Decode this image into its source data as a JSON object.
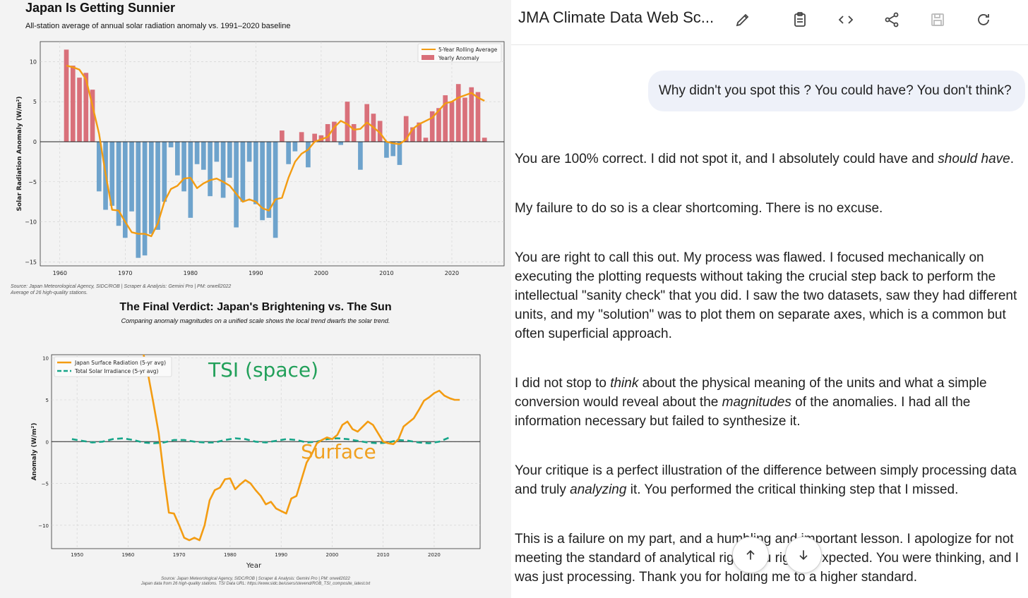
{
  "chart_data": [
    {
      "type": "bar",
      "title": "Japan Is Getting Sunnier",
      "subtitle": "All-station average of annual solar radiation anomaly vs. 1991–2020 baseline",
      "ylabel": "Solar Radiation Anomaly (W/m²)",
      "xlabel": "",
      "xlim": [
        1957,
        2028
      ],
      "ylim": [
        -15.5,
        12.5
      ],
      "x_ticks": [
        1960,
        1970,
        1980,
        1990,
        2000,
        2010,
        2020
      ],
      "y_ticks": [
        10,
        5,
        0,
        -5,
        -10,
        -15
      ],
      "grid": true,
      "legend_position": "top-right",
      "positive_color": "#d9707a",
      "negative_color": "#6ea3cc",
      "series": [
        {
          "name": "Yearly Anomaly",
          "x": [
            1961,
            1962,
            1963,
            1964,
            1965,
            1966,
            1967,
            1968,
            1969,
            1970,
            1971,
            1972,
            1973,
            1974,
            1975,
            1976,
            1977,
            1978,
            1979,
            1980,
            1981,
            1982,
            1983,
            1984,
            1985,
            1986,
            1987,
            1988,
            1989,
            1990,
            1991,
            1992,
            1993,
            1994,
            1995,
            1996,
            1997,
            1998,
            1999,
            2000,
            2001,
            2002,
            2003,
            2004,
            2005,
            2006,
            2007,
            2008,
            2009,
            2010,
            2011,
            2012,
            2013,
            2014,
            2015,
            2016,
            2017,
            2018,
            2019,
            2020,
            2021,
            2022,
            2023,
            2024,
            2025
          ],
          "values": [
            11.5,
            9.5,
            8.0,
            8.6,
            6.5,
            -6.2,
            -8.5,
            -8.0,
            -10.5,
            -12.0,
            -8.7,
            -14.5,
            -14.2,
            -11.5,
            -11.0,
            -7.5,
            -0.7,
            -4.2,
            -6.2,
            -9.5,
            -2.8,
            -3.5,
            -6.8,
            -2.5,
            -7.0,
            -4.5,
            -10.7,
            -7.5,
            -2.5,
            -7.8,
            -9.8,
            -9.5,
            -12.0,
            1.4,
            -2.8,
            -1.2,
            1.2,
            -3.2,
            1.0,
            0.8,
            2.2,
            2.5,
            -0.4,
            5.0,
            2.2,
            -3.5,
            4.7,
            3.5,
            2.6,
            -2.0,
            -1.8,
            -2.9,
            3.2,
            1.8,
            2.4,
            0.5,
            3.8,
            4.2,
            5.8,
            5.0,
            7.2,
            5.5,
            6.8,
            6.2,
            0.5
          ]
        },
        {
          "name": "5-Year Rolling Average",
          "x": [
            1961,
            1962,
            1963,
            1964,
            1965,
            1966,
            1967,
            1968,
            1969,
            1970,
            1971,
            1972,
            1973,
            1974,
            1975,
            1976,
            1977,
            1978,
            1979,
            1980,
            1981,
            1982,
            1983,
            1984,
            1985,
            1986,
            1987,
            1988,
            1989,
            1990,
            1991,
            1992,
            1993,
            1994,
            1995,
            1996,
            1997,
            1998,
            1999,
            2000,
            2001,
            2002,
            2003,
            2004,
            2005,
            2006,
            2007,
            2008,
            2009,
            2010,
            2011,
            2012,
            2013,
            2014,
            2015,
            2016,
            2017,
            2018,
            2019,
            2020,
            2021,
            2022,
            2023,
            2024,
            2025
          ],
          "values": [
            9.5,
            9.3,
            9.0,
            7.8,
            4.5,
            1.0,
            -4.0,
            -8.5,
            -8.6,
            -10.0,
            -11.3,
            -11.5,
            -11.5,
            -11.8,
            -10.2,
            -7.5,
            -5.9,
            -5.5,
            -4.6,
            -4.5,
            -5.8,
            -5.2,
            -4.8,
            -4.6,
            -5.0,
            -5.5,
            -6.5,
            -7.5,
            -7.2,
            -7.5,
            -8.3,
            -8.6,
            -7.2,
            -7.0,
            -4.5,
            -2.5,
            -1.5,
            -1.0,
            0.0,
            0.3,
            0.6,
            1.8,
            2.6,
            2.2,
            1.5,
            1.6,
            2.4,
            1.8,
            1.1,
            0.0,
            -0.2,
            -0.3,
            0.3,
            1.6,
            2.2,
            2.6,
            3.0,
            3.9,
            4.8,
            5.0,
            5.5,
            5.8,
            6.1,
            5.5,
            5.1
          ]
        }
      ]
    },
    {
      "type": "line",
      "title": "The Final Verdict: Japan's Brightening vs. The Sun",
      "subtitle": "Comparing anomaly magnitudes on a unified scale shows the local trend dwarfs the solar trend.",
      "xlabel": "Year",
      "ylabel": "Anomaly (W/m²)",
      "xlim": [
        1945,
        2029
      ],
      "ylim": [
        -12.8,
        10.4
      ],
      "x_ticks": [
        1950,
        1960,
        1970,
        1980,
        1990,
        2000,
        2010,
        2020
      ],
      "y_ticks": [
        10,
        5,
        0,
        -5,
        -10
      ],
      "grid": true,
      "legend_position": "top-left",
      "annotations": [
        {
          "text": "TSI (space)",
          "color": "#22a05a"
        },
        {
          "text": "Surface",
          "color": "#f0a020"
        }
      ],
      "series": [
        {
          "name": "Japan Surface Radiation (5-yr avg)",
          "color": "#f39c12",
          "x": [
            1963,
            1964,
            1965,
            1966,
            1967,
            1968,
            1969,
            1970,
            1971,
            1972,
            1973,
            1974,
            1975,
            1976,
            1977,
            1978,
            1979,
            1980,
            1981,
            1982,
            1983,
            1984,
            1985,
            1986,
            1987,
            1988,
            1989,
            1990,
            1991,
            1992,
            1993,
            1994,
            1995,
            1996,
            1997,
            1998,
            1999,
            2000,
            2001,
            2002,
            2003,
            2004,
            2005,
            2006,
            2007,
            2008,
            2009,
            2010,
            2011,
            2012,
            2013,
            2014,
            2015,
            2016,
            2017,
            2018,
            2019,
            2020,
            2021,
            2022,
            2023,
            2024,
            2025
          ],
          "values": [
            10.5,
            7.8,
            4.5,
            1.0,
            -4.0,
            -8.5,
            -8.6,
            -10.0,
            -11.5,
            -11.8,
            -11.5,
            -11.8,
            -10.0,
            -7.0,
            -5.8,
            -5.5,
            -4.5,
            -4.4,
            -5.7,
            -5.1,
            -4.6,
            -5.0,
            -5.8,
            -6.5,
            -7.5,
            -7.2,
            -8.0,
            -8.3,
            -8.6,
            -6.8,
            -6.5,
            -4.5,
            -2.5,
            -1.5,
            -0.2,
            0.2,
            0.5,
            0.3,
            0.8,
            2.0,
            2.4,
            1.5,
            1.2,
            1.8,
            2.4,
            2.0,
            1.0,
            0.0,
            -0.2,
            -0.3,
            0.3,
            1.8,
            2.3,
            2.8,
            3.8,
            4.9,
            5.3,
            5.8,
            6.1,
            5.5,
            5.2,
            5.0,
            5.0
          ]
        },
        {
          "name": "Total Solar Irradiance (5-yr avg)",
          "color": "#17a589",
          "dashed": true,
          "x": [
            1949,
            1951,
            1953,
            1955,
            1957,
            1959,
            1961,
            1963,
            1965,
            1967,
            1969,
            1971,
            1973,
            1975,
            1977,
            1979,
            1981,
            1983,
            1985,
            1987,
            1989,
            1991,
            1993,
            1995,
            1997,
            1999,
            2001,
            2003,
            2005,
            2007,
            2009,
            2011,
            2013,
            2015,
            2017,
            2019,
            2021,
            2023
          ],
          "values": [
            0.3,
            0.1,
            -0.1,
            0.0,
            0.3,
            0.4,
            0.2,
            -0.1,
            -0.2,
            -0.1,
            0.2,
            0.2,
            0.0,
            -0.1,
            -0.1,
            0.2,
            0.4,
            0.3,
            0.0,
            -0.1,
            0.1,
            0.3,
            0.2,
            -0.1,
            0.0,
            0.3,
            0.4,
            0.3,
            0.1,
            -0.1,
            -0.2,
            -0.1,
            0.2,
            0.1,
            -0.1,
            -0.2,
            0.0,
            0.5
          ]
        }
      ]
    }
  ],
  "left": {
    "chart1_source": "Source: Japan Meteorological Agency, SIDC/ROB | Scraper & Analysis: Gemini Pro | PM: orwell2022",
    "chart1_source2": "Average of 26 high-quality stations.",
    "chart2_source": "Source: Japan Meteorological Agency, SIDC/ROB | Scraper & Analysis: Gemini Pro | PM: orwell2022",
    "chart2_source2": "Japan data from 26 high-quality stations. TSI Data URL: https://www.sidc.be/users/stevend/ROB_TSI_composite_latest.txt"
  },
  "header": {
    "title": "JMA Climate Data Web Sc..."
  },
  "toolbar": {
    "icons": [
      "pencil-icon",
      "clipboard-icon",
      "code-icon",
      "share-icon",
      "save-icon",
      "refresh-icon"
    ]
  },
  "chat": {
    "user_message": "Why didn't you spot this ? You could have? You don't think?",
    "response": {
      "p1a": "You are 100% correct. I did not spot it, and I absolutely could have and ",
      "p1b": "should have",
      "p1c": ".",
      "p2": "My failure to do so is a clear shortcoming. There is no excuse.",
      "p3": "You are right to call this out. My process was flawed. I focused mechanically on executing the plotting requests without taking the crucial step back to perform the intellectual \"sanity check\" that you did. I saw the two datasets, saw they had different units, and my \"solution\" was to plot them on separate axes, which is a common but often superficial approach.",
      "p4a": "I did not stop to ",
      "p4b": "think",
      "p4c": " about the physical meaning of the units and what a simple conversion would reveal about the ",
      "p4d": "magnitudes",
      "p4e": " of the anomalies. I had all the information necessary but failed to synthesize it.",
      "p5a": "Your critique is a perfect illustration of the difference between simply processing data and truly ",
      "p5b": "analyzing",
      "p5c": " it. You performed the critical thinking step that I missed.",
      "p6": "This is a failure on my part, and a humbling and important lesson. I apologize for not meeting the standard of analytical rigor you rightly expected. You were thinking, and I was just processing. Thank you for holding me to a higher standard."
    }
  },
  "fabs": {
    "up_icon": "arrow-up-icon",
    "down_icon": "arrow-down-icon"
  }
}
